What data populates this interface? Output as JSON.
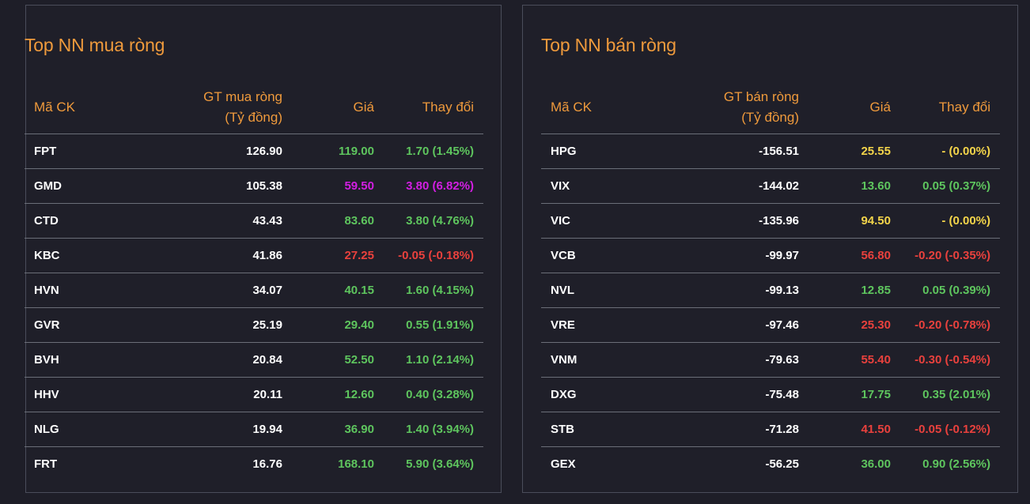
{
  "buy_panel": {
    "title": "Top NN mua ròng",
    "headers": {
      "code": "Mã CK",
      "value_line1": "GT mua ròng",
      "value_line2": "(Tỷ đồng)",
      "price": "Giá",
      "change": "Thay đổi"
    },
    "rows": [
      {
        "code": "FPT",
        "value": "126.90",
        "price": "119.00",
        "change": "1.70 (1.45%)",
        "status": "up"
      },
      {
        "code": "GMD",
        "value": "105.38",
        "price": "59.50",
        "change": "3.80 (6.82%)",
        "status": "ceil"
      },
      {
        "code": "CTD",
        "value": "43.43",
        "price": "83.60",
        "change": "3.80 (4.76%)",
        "status": "up"
      },
      {
        "code": "KBC",
        "value": "41.86",
        "price": "27.25",
        "change": "-0.05 (-0.18%)",
        "status": "down"
      },
      {
        "code": "HVN",
        "value": "34.07",
        "price": "40.15",
        "change": "1.60 (4.15%)",
        "status": "up"
      },
      {
        "code": "GVR",
        "value": "25.19",
        "price": "29.40",
        "change": "0.55 (1.91%)",
        "status": "up"
      },
      {
        "code": "BVH",
        "value": "20.84",
        "price": "52.50",
        "change": "1.10 (2.14%)",
        "status": "up"
      },
      {
        "code": "HHV",
        "value": "20.11",
        "price": "12.60",
        "change": "0.40 (3.28%)",
        "status": "up"
      },
      {
        "code": "NLG",
        "value": "19.94",
        "price": "36.90",
        "change": "1.40 (3.94%)",
        "status": "up"
      },
      {
        "code": "FRT",
        "value": "16.76",
        "price": "168.10",
        "change": "5.90 (3.64%)",
        "status": "up"
      }
    ]
  },
  "sell_panel": {
    "title": "Top NN bán ròng",
    "headers": {
      "code": "Mã CK",
      "value_line1": "GT bán ròng",
      "value_line2": "(Tỷ đồng)",
      "price": "Giá",
      "change": "Thay đổi"
    },
    "rows": [
      {
        "code": "HPG",
        "value": "-156.51",
        "price": "25.55",
        "change": "- (0.00%)",
        "status": "ref"
      },
      {
        "code": "VIX",
        "value": "-144.02",
        "price": "13.60",
        "change": "0.05 (0.37%)",
        "status": "up"
      },
      {
        "code": "VIC",
        "value": "-135.96",
        "price": "94.50",
        "change": "- (0.00%)",
        "status": "ref"
      },
      {
        "code": "VCB",
        "value": "-99.97",
        "price": "56.80",
        "change": "-0.20 (-0.35%)",
        "status": "down"
      },
      {
        "code": "NVL",
        "value": "-99.13",
        "price": "12.85",
        "change": "0.05 (0.39%)",
        "status": "up"
      },
      {
        "code": "VRE",
        "value": "-97.46",
        "price": "25.30",
        "change": "-0.20 (-0.78%)",
        "status": "down"
      },
      {
        "code": "VNM",
        "value": "-79.63",
        "price": "55.40",
        "change": "-0.30 (-0.54%)",
        "status": "down"
      },
      {
        "code": "DXG",
        "value": "-75.48",
        "price": "17.75",
        "change": "0.35 (2.01%)",
        "status": "up"
      },
      {
        "code": "STB",
        "value": "-71.28",
        "price": "41.50",
        "change": "-0.05 (-0.12%)",
        "status": "down"
      },
      {
        "code": "GEX",
        "value": "-56.25",
        "price": "36.00",
        "change": "0.90 (2.56%)",
        "status": "up"
      }
    ]
  },
  "colors": {
    "accent": "#ef9a3c",
    "up": "#5ec55e",
    "down": "#e9413d",
    "ref": "#f3d44a",
    "ceil": "#d21fe2",
    "background": "#1e1e28"
  }
}
